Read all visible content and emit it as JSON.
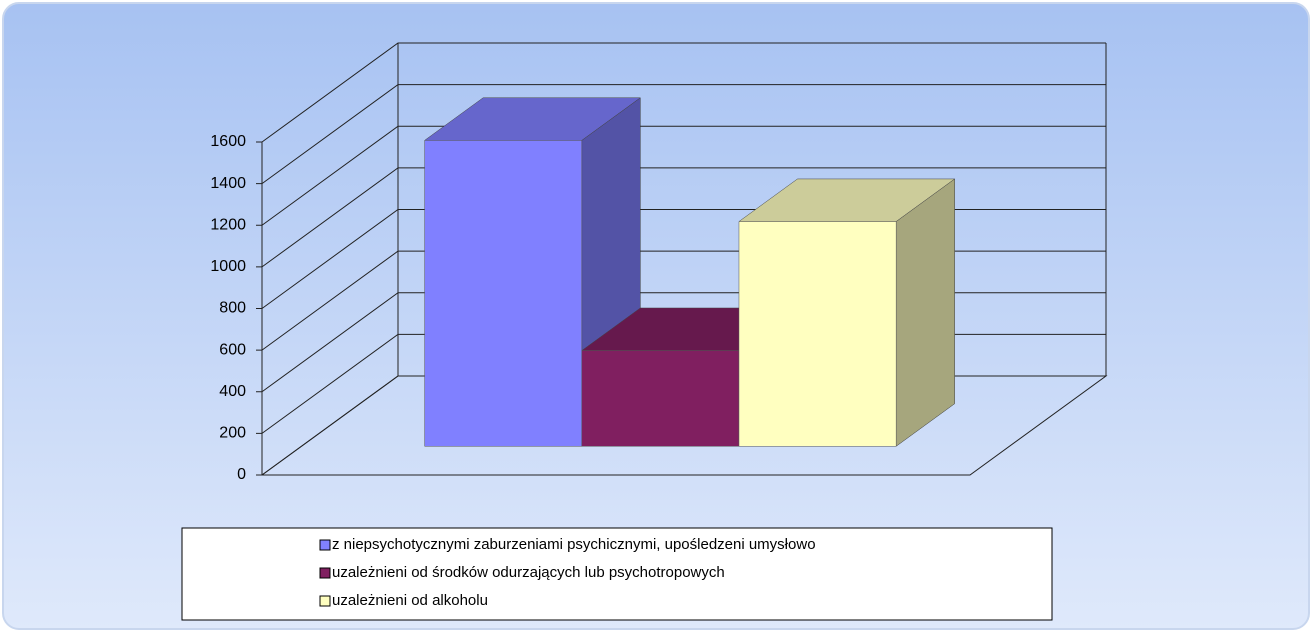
{
  "chart_data": {
    "type": "bar3d",
    "series": [
      {
        "name": "z niepsychotycznymi zaburzeniami psychicznymi, upośledzeni umysłowo",
        "color": "#8080ff",
        "values": [
          1470
        ]
      },
      {
        "name": "uzależnieni od środków odurzających lub psychotropowych",
        "color": "#801f60",
        "values": [
          460
        ]
      },
      {
        "name": "uzależnieni od alkoholu",
        "color": "#ffffc0",
        "values": [
          1080
        ]
      }
    ],
    "ylim": [
      0,
      1600
    ],
    "yticks": [
      0,
      200,
      400,
      600,
      800,
      1000,
      1200,
      1400,
      1600
    ],
    "grid": true
  }
}
